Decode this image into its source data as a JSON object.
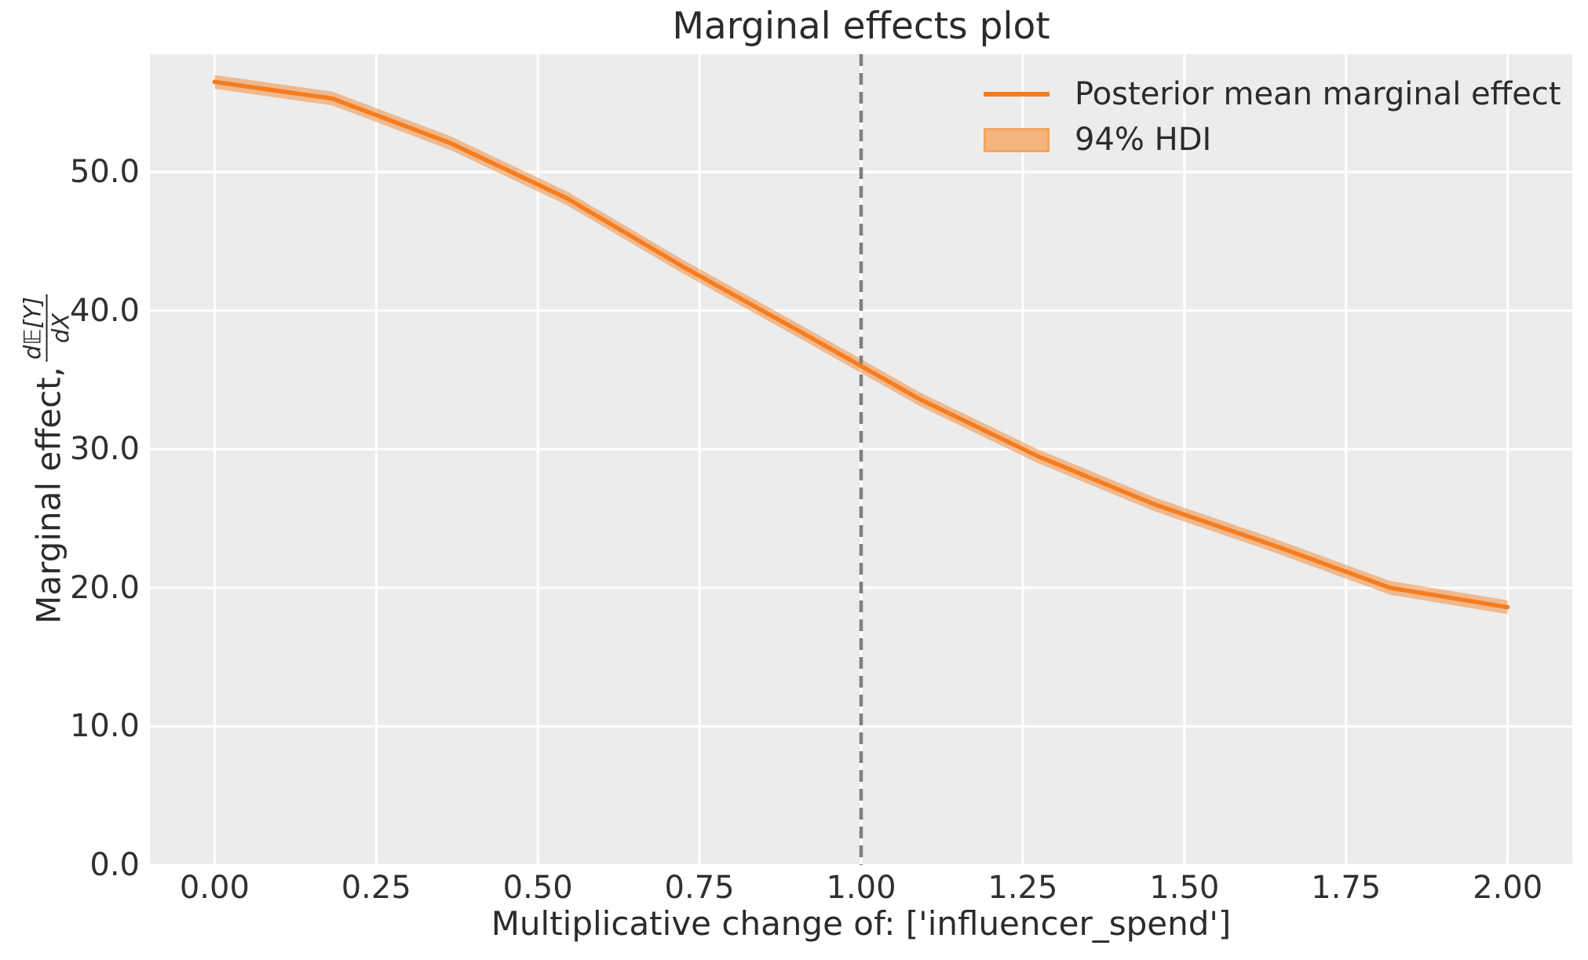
{
  "chart_data": {
    "type": "line",
    "title": "Marginal effects plot",
    "xlabel": "Multiplicative change of: ['influencer_spend']",
    "ylabel": "Marginal effect, d𝔼[Y]/dX",
    "ylabel_prefix": "Marginal effect, ",
    "ylabel_frac_numerator": "d𝔼[Y]",
    "ylabel_frac_denominator": "dX",
    "xlim": [
      -0.1,
      2.1
    ],
    "ylim": [
      0,
      58.5
    ],
    "grid": true,
    "plot_background": "#ececec",
    "grid_color": "#ffffff",
    "x_tick_values": [
      0,
      0.25,
      0.5,
      0.75,
      1.0,
      1.25,
      1.5,
      1.75,
      2.0
    ],
    "x_tick_labels": [
      "0.00",
      "0.25",
      "0.50",
      "0.75",
      "1.00",
      "1.25",
      "1.50",
      "1.75",
      "2.00"
    ],
    "y_tick_values": [
      0,
      10,
      20,
      30,
      40,
      50
    ],
    "y_tick_labels": [
      "0.0",
      "10.0",
      "20.0",
      "30.0",
      "40.0",
      "50.0"
    ],
    "reference_line": {
      "orientation": "vertical",
      "x": 1.0,
      "color": "#7f7f7f",
      "style": "dashed"
    },
    "legend": {
      "position": "upper right"
    },
    "series": [
      {
        "name": "Posterior mean marginal effect",
        "type": "line",
        "color": "#f57d1f",
        "x": [
          0.0,
          0.182,
          0.364,
          0.545,
          0.727,
          0.909,
          1.091,
          1.273,
          1.455,
          1.636,
          1.818,
          2.0
        ],
        "y": [
          56.5,
          55.3,
          52.1,
          48.1,
          43.1,
          38.4,
          33.6,
          29.5,
          26.0,
          23.1,
          20.0,
          18.6
        ]
      },
      {
        "name": "94% HDI",
        "type": "band",
        "fill_color": "#f4b47c",
        "edge_color": "#efa65f"
      }
    ]
  }
}
